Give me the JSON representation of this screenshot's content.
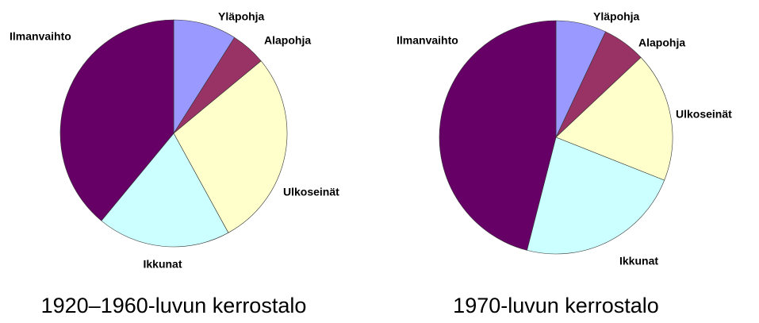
{
  "chart_data": [
    {
      "type": "pie",
      "title": "1920–1960-luvun kerrostalo",
      "categories": [
        "Yläpohja",
        "Alapohja",
        "Ulkoseinät",
        "Ikkunat",
        "Ilmanvaihto"
      ],
      "values": [
        9,
        5,
        28,
        19,
        39
      ],
      "colors": [
        "#9999ff",
        "#993366",
        "#ffffcc",
        "#ccffff",
        "#660066"
      ]
    },
    {
      "type": "pie",
      "title": "1970-luvun kerrostalo",
      "categories": [
        "Yläpohja",
        "Alapohja",
        "Ulkoseinät",
        "Ikkunat",
        "Ilmanvaihto"
      ],
      "values": [
        7,
        6,
        18,
        23,
        46
      ],
      "colors": [
        "#9999ff",
        "#993366",
        "#ffffcc",
        "#ccffff",
        "#660066"
      ]
    }
  ]
}
